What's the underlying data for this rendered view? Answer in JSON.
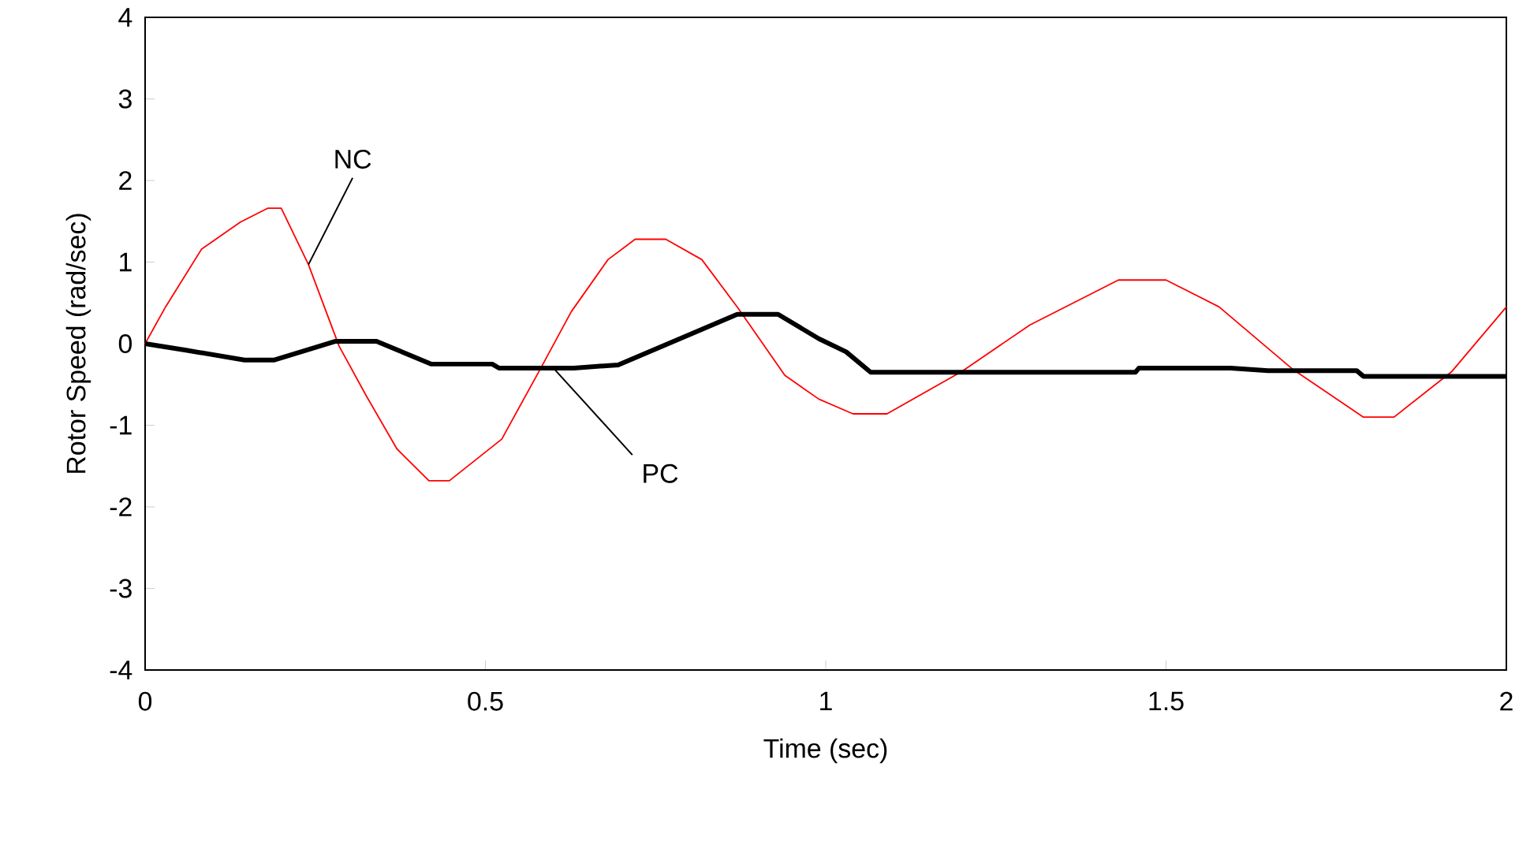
{
  "chart_data": {
    "type": "line",
    "xlabel": "Time (sec)",
    "ylabel": "Rotor Speed (rad/sec)",
    "xlim": [
      0,
      2
    ],
    "xticks": [
      0,
      0.5,
      1,
      1.5,
      2
    ],
    "ylim": [
      -4,
      4
    ],
    "yticks": [
      -4,
      -3,
      -2,
      -1,
      0,
      1,
      2,
      3,
      4
    ],
    "grid": false,
    "marker": "none",
    "line_style": "solid",
    "series": [
      {
        "color": "#ff0000",
        "x": [
          0,
          0.03,
          0.083,
          0.14,
          0.18,
          0.2,
          0.24,
          0.285,
          0.325,
          0.37,
          0.417,
          0.447,
          0.524,
          0.58,
          0.626,
          0.68,
          0.72,
          0.765,
          0.818,
          0.87,
          0.94,
          0.99,
          1.04,
          1.09,
          1.2,
          1.3,
          1.43,
          1.5,
          1.578,
          1.687,
          1.79,
          1.835,
          1.92,
          2.0
        ],
        "values": [
          0,
          0.45,
          1.16,
          1.49,
          1.66,
          1.66,
          0.97,
          -0.03,
          -0.64,
          -1.29,
          -1.68,
          -1.68,
          -1.17,
          -0.32,
          0.39,
          1.03,
          1.28,
          1.28,
          1.03,
          0.45,
          -0.39,
          -0.68,
          -0.86,
          -0.86,
          -0.34,
          0.23,
          0.78,
          0.78,
          0.45,
          -0.32,
          -0.9,
          -0.9,
          -0.34,
          0.45
        ]
      },
      {
        "color": "#000000",
        "x": [
          0,
          0.06,
          0.146,
          0.19,
          0.28,
          0.34,
          0.42,
          0.51,
          0.52,
          0.63,
          0.695,
          0.87,
          0.93,
          0.99,
          1.03,
          1.066,
          1.455,
          1.46,
          1.595,
          1.65,
          1.78,
          1.79,
          2.0
        ],
        "values": [
          0,
          -0.08,
          -0.2,
          -0.2,
          0.03,
          0.03,
          -0.25,
          -0.25,
          -0.3,
          -0.3,
          -0.26,
          0.36,
          0.36,
          0.06,
          -0.1,
          -0.35,
          -0.35,
          -0.3,
          -0.3,
          -0.33,
          -0.33,
          -0.4,
          -0.4
        ]
      }
    ],
    "annotations": [
      {
        "text": "NC",
        "x": 0.24,
        "y": 0.97
      },
      {
        "text": "PC",
        "x": 0.6,
        "y": -0.3
      }
    ]
  }
}
